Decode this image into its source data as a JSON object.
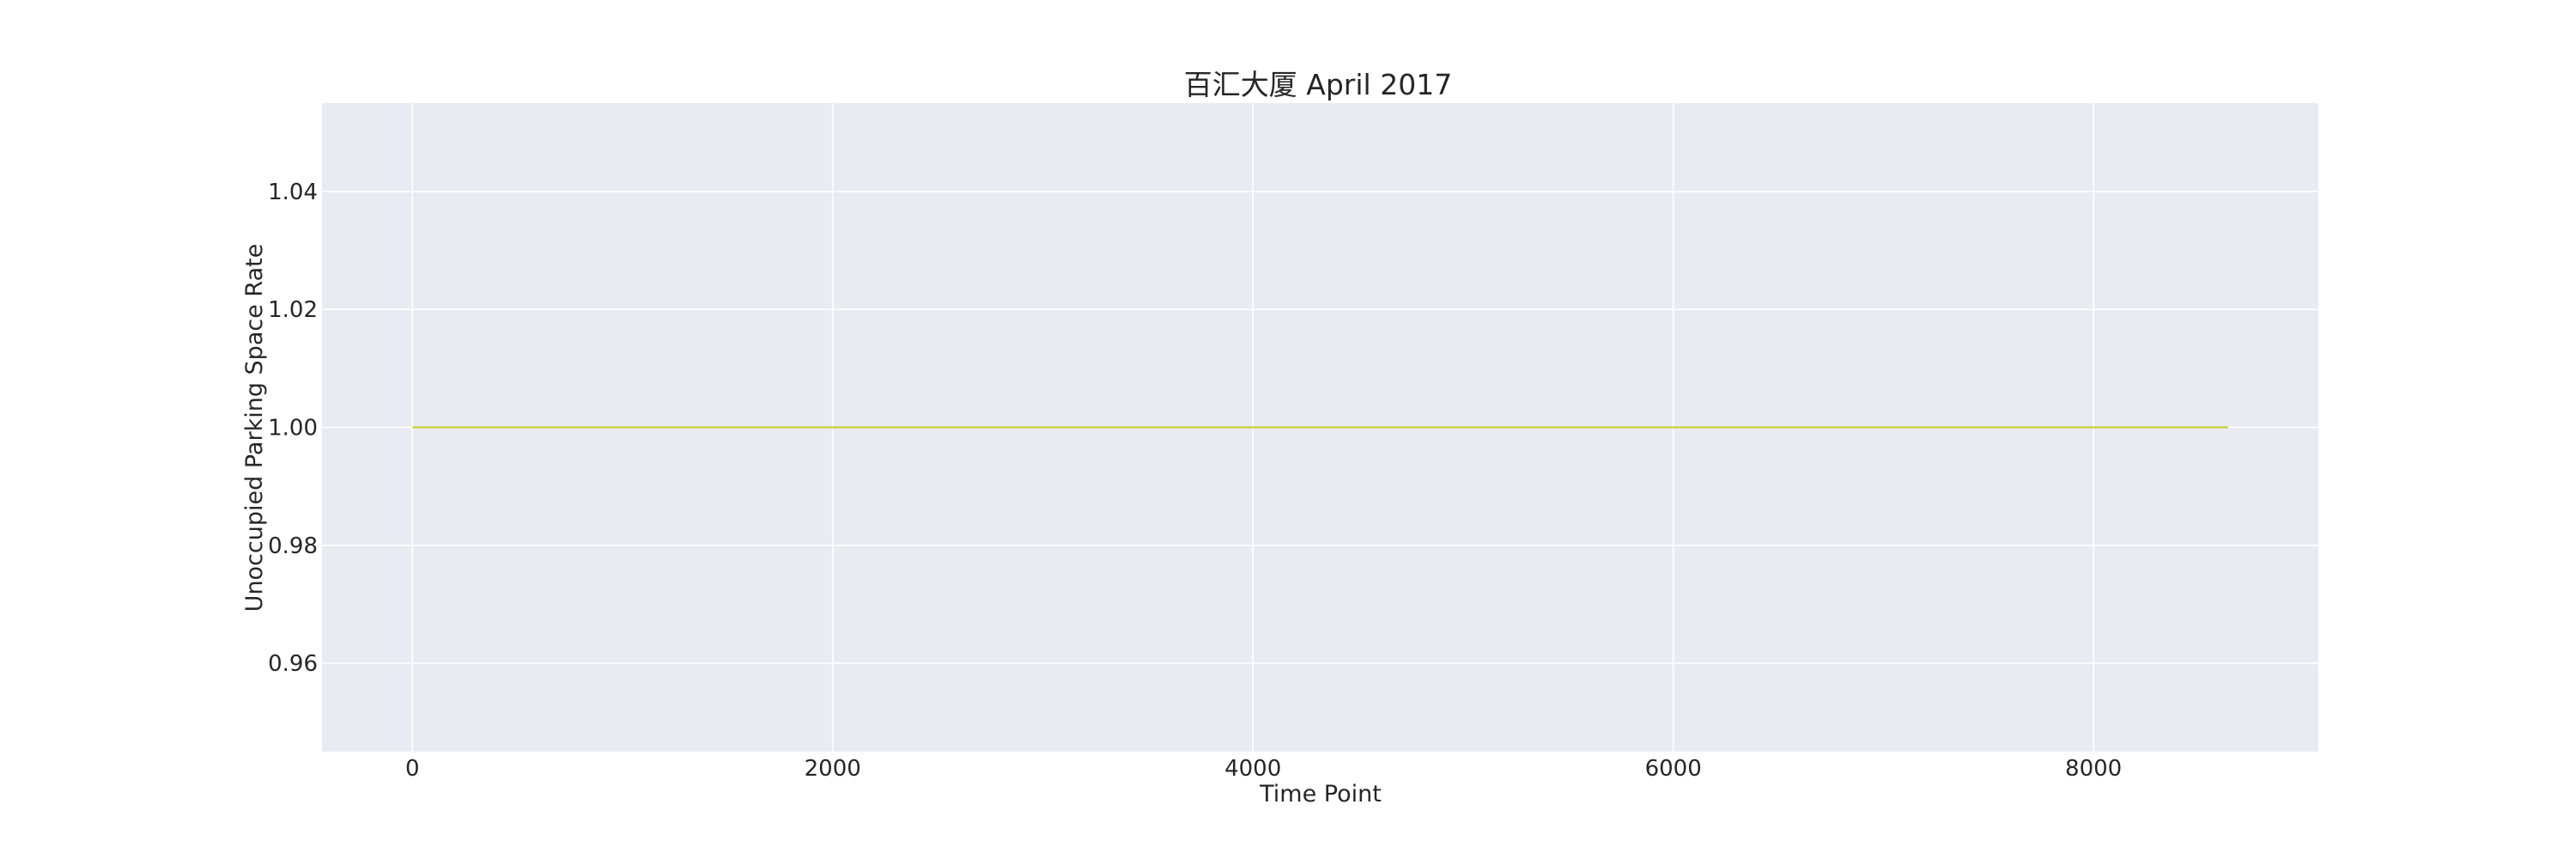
{
  "chart_data": {
    "type": "line",
    "title": "百汇大厦 April 2017",
    "xlabel": "Time Point",
    "ylabel": "Unoccupied Parking Space Rate",
    "xlim": [
      -430,
      9070
    ],
    "ylim": [
      0.945,
      1.055
    ],
    "x_ticks": [
      0,
      2000,
      4000,
      6000,
      8000
    ],
    "x_tick_labels": [
      "0",
      "2000",
      "4000",
      "6000",
      "8000"
    ],
    "y_ticks": [
      0.96,
      0.98,
      1.0,
      1.02,
      1.04
    ],
    "y_tick_labels": [
      "0.96",
      "0.98",
      "1.00",
      "1.02",
      "1.04"
    ],
    "grid": true,
    "series": [
      {
        "name": "百汇大厦",
        "color": "#c8d23c",
        "x": [
          0,
          8640
        ],
        "y": [
          1.0,
          1.0
        ]
      }
    ]
  }
}
